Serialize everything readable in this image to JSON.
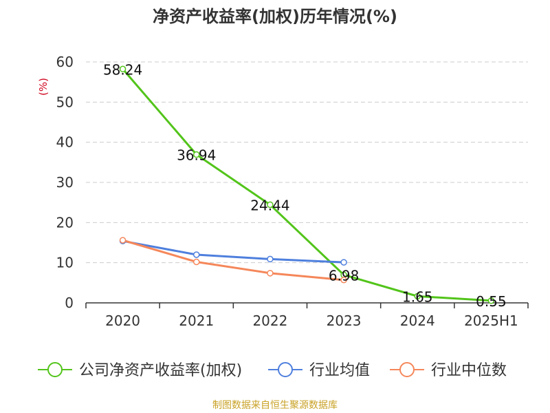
{
  "chart_data": {
    "type": "line",
    "title": "净资产收益率(加权)历年情况(%)",
    "ylabel": "(%)",
    "xlabel": "",
    "categories": [
      "2020",
      "2021",
      "2022",
      "2023",
      "2024",
      "2025H1"
    ],
    "ylim": [
      0,
      60
    ],
    "yticks": [
      0,
      10,
      20,
      30,
      40,
      50,
      60
    ],
    "grid": true,
    "legend_position": "bottom",
    "series": [
      {
        "name": "公司净资产收益率(加权)",
        "color": "#52c41a",
        "values": [
          58.24,
          36.94,
          24.44,
          6.98,
          1.65,
          0.55
        ],
        "labels": [
          "58.24",
          "36.94",
          "24.44",
          "6.98",
          "1.65",
          "0.55"
        ]
      },
      {
        "name": "行业均值",
        "color": "#4e7fdd",
        "values": [
          15.4,
          12.0,
          10.9,
          10.1,
          null,
          null
        ]
      },
      {
        "name": "行业中位数",
        "color": "#f5875a",
        "values": [
          15.6,
          10.2,
          7.4,
          5.7,
          null,
          null
        ]
      }
    ]
  },
  "source": "制图数据来自恒生聚源数据库"
}
